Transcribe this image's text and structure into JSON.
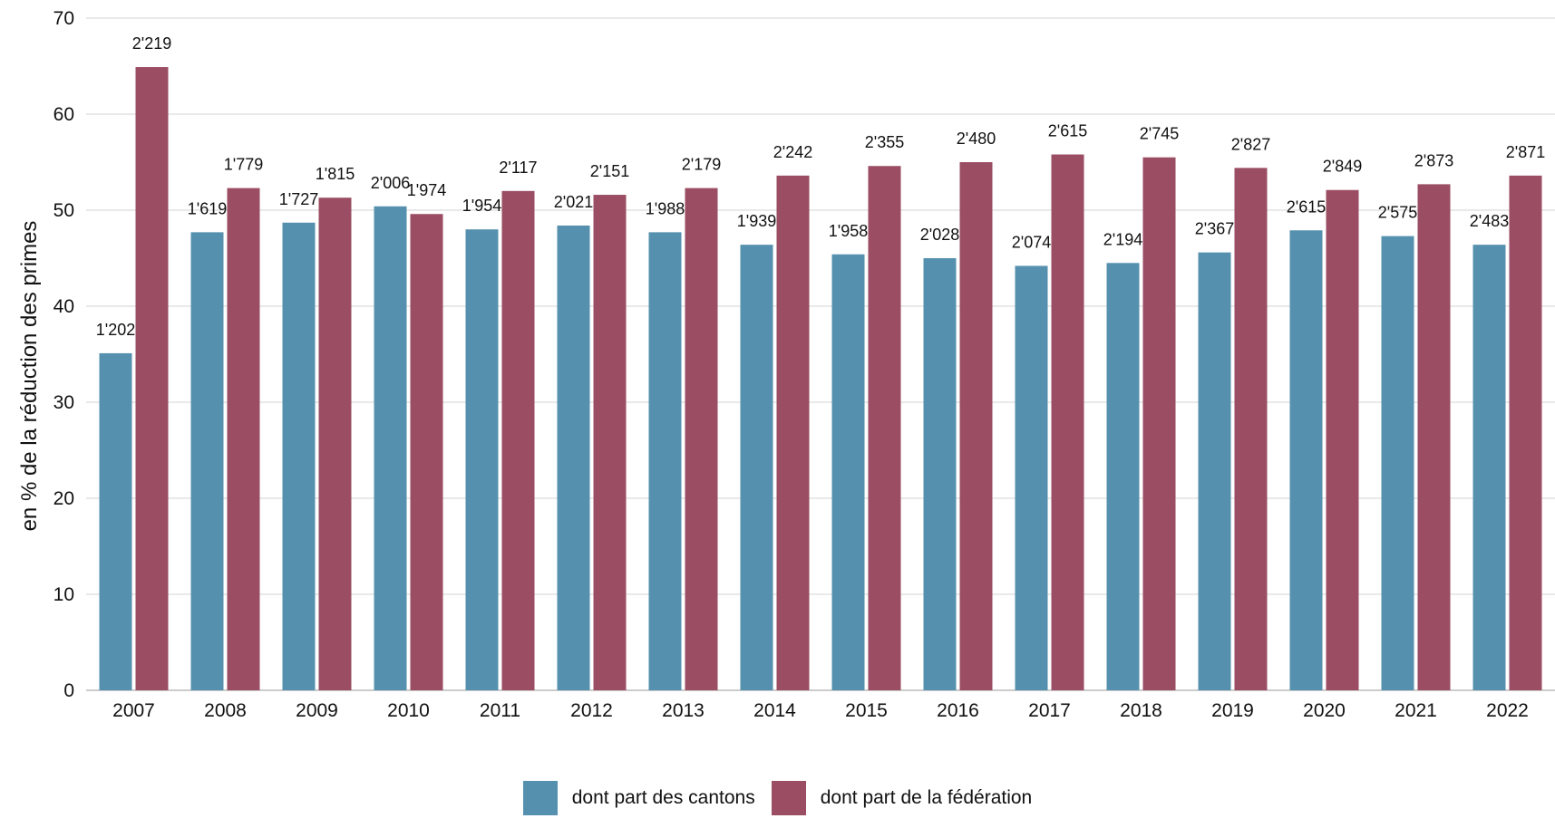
{
  "chart_data": {
    "type": "bar",
    "ylabel": "en % de la réduction des primes",
    "xlabel": "",
    "title": "",
    "ylim": [
      0,
      70
    ],
    "yticks": [
      0,
      10,
      20,
      30,
      40,
      50,
      60,
      70
    ],
    "grid": true,
    "legend_position": "bottom",
    "categories": [
      "2007",
      "2008",
      "2009",
      "2010",
      "2011",
      "2012",
      "2013",
      "2014",
      "2015",
      "2016",
      "2017",
      "2018",
      "2019",
      "2020",
      "2021",
      "2022"
    ],
    "series": [
      {
        "name": "dont part des cantons",
        "color": "#5590AE",
        "values": [
          35.1,
          47.7,
          48.7,
          50.4,
          48.0,
          48.4,
          47.7,
          46.4,
          45.4,
          45.0,
          44.2,
          44.5,
          45.6,
          47.9,
          47.3,
          46.4
        ],
        "labels": [
          "1'202",
          "1'619",
          "1'727",
          "2'006",
          "1'954",
          "2'021",
          "1'988",
          "1'939",
          "1'958",
          "2'028",
          "2'074",
          "2'194",
          "2'367",
          "2'615",
          "2'575",
          "2'483"
        ]
      },
      {
        "name": "dont part de la fédération",
        "color": "#9A4D63",
        "values": [
          64.9,
          52.3,
          51.3,
          49.6,
          52.0,
          51.6,
          52.3,
          53.6,
          54.6,
          55.0,
          55.8,
          55.5,
          54.4,
          52.1,
          52.7,
          53.6
        ],
        "labels": [
          "2'219",
          "1'779",
          "1'815",
          "1'974",
          "2'117",
          "2'151",
          "2'179",
          "2'242",
          "2'355",
          "2'480",
          "2'615",
          "2'745",
          "2'827",
          "2'849",
          "2'873",
          "2'871"
        ]
      }
    ]
  }
}
